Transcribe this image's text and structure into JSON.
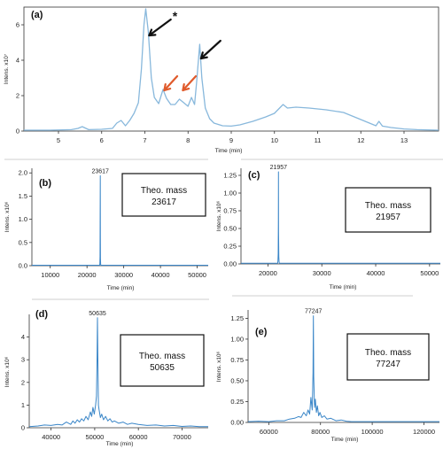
{
  "chart_data": [
    {
      "id": "a",
      "type": "line",
      "panel_label": "(a)",
      "title": "",
      "xlabel": "Time (min)",
      "ylabel": "Intens. x10⁷",
      "xlim": [
        4.2,
        13.8
      ],
      "ylim": [
        0,
        7.0
      ],
      "xticks": [
        5,
        6,
        7,
        8,
        9,
        10,
        11,
        12,
        13
      ],
      "yticks": [
        0,
        2,
        4,
        6
      ],
      "grid": false,
      "series": [
        {
          "color": "#88b8dc",
          "x": [
            4.2,
            4.8,
            5.3,
            5.45,
            5.55,
            5.7,
            6.0,
            6.25,
            6.35,
            6.45,
            6.55,
            6.65,
            6.75,
            6.85,
            6.92,
            6.98,
            7.02,
            7.08,
            7.15,
            7.22,
            7.32,
            7.42,
            7.5,
            7.6,
            7.7,
            7.8,
            7.9,
            8.0,
            8.08,
            8.15,
            8.2,
            8.27,
            8.32,
            8.4,
            8.5,
            8.6,
            8.8,
            9.0,
            9.2,
            9.5,
            9.8,
            10.0,
            10.2,
            10.3,
            10.5,
            10.8,
            11.2,
            11.6,
            11.9,
            12.2,
            12.35,
            12.42,
            12.5,
            12.7,
            13.0,
            13.3,
            13.8
          ],
          "y": [
            0.05,
            0.05,
            0.08,
            0.15,
            0.25,
            0.08,
            0.1,
            0.15,
            0.45,
            0.6,
            0.3,
            0.6,
            1.0,
            1.6,
            3.5,
            6.0,
            6.9,
            5.6,
            3.0,
            1.9,
            1.55,
            2.35,
            1.85,
            1.5,
            1.5,
            1.8,
            1.6,
            1.4,
            1.9,
            1.5,
            2.8,
            4.9,
            3.0,
            1.3,
            0.7,
            0.45,
            0.3,
            0.28,
            0.35,
            0.55,
            0.8,
            1.0,
            1.5,
            1.3,
            1.35,
            1.3,
            1.2,
            1.05,
            0.75,
            0.45,
            0.3,
            0.55,
            0.28,
            0.2,
            0.12,
            0.08,
            0.05
          ]
        }
      ],
      "annotations": [
        {
          "type": "arrow",
          "color": "#111111",
          "label": "*",
          "target": [
            7.1,
            5.4
          ],
          "from": [
            7.6,
            6.3
          ]
        },
        {
          "type": "arrow",
          "color": "#111111",
          "target": [
            8.3,
            4.1
          ],
          "from": [
            8.75,
            5.1
          ]
        },
        {
          "type": "arrow",
          "color": "#e05a2b",
          "target": [
            7.45,
            2.3
          ],
          "from": [
            7.75,
            3.1
          ]
        },
        {
          "type": "arrow",
          "color": "#e05a2b",
          "target": [
            7.88,
            2.3
          ],
          "from": [
            8.18,
            3.1
          ]
        }
      ]
    },
    {
      "id": "b",
      "type": "line",
      "panel_label": "(b)",
      "xlabel": "Time (min)",
      "ylabel": "Intens. x10⁶",
      "xlim": [
        5000,
        53000
      ],
      "ylim": [
        0,
        2.1
      ],
      "xticks": [
        10000,
        20000,
        30000,
        40000,
        50000
      ],
      "yticks": [
        0.0,
        0.5,
        1.0,
        1.5,
        2.0
      ],
      "ytick_labels": [
        "0.0",
        "0.5",
        "1.0",
        "1.5",
        "2.0"
      ],
      "peak_label": {
        "text": "23617",
        "x": 23617,
        "y": 1.94
      },
      "theo_mass": {
        "line1": "Theo. mass",
        "line2": "23617"
      },
      "series": [
        {
          "color": "#3a86c8",
          "x": [
            5000,
            23450,
            23500,
            23560,
            23600,
            23617,
            23640,
            23680,
            23720,
            23760,
            53000
          ],
          "y": [
            0.01,
            0.01,
            0.05,
            0.2,
            1.4,
            1.94,
            0.6,
            0.15,
            0.04,
            0.01,
            0.01
          ]
        }
      ]
    },
    {
      "id": "c",
      "type": "line",
      "panel_label": "(c)",
      "xlabel": "Time (min)",
      "ylabel": "Intens. x10⁶",
      "xlim": [
        15000,
        52000
      ],
      "ylim": [
        0,
        1.35
      ],
      "xticks": [
        20000,
        30000,
        40000,
        50000
      ],
      "yticks": [
        0.0,
        0.25,
        0.5,
        0.75,
        1.0,
        1.25
      ],
      "ytick_labels": [
        "0.00",
        "0.25",
        "0.50",
        "0.75",
        "1.00",
        "1.25"
      ],
      "peak_label": {
        "text": "21957",
        "x": 21957,
        "y": 1.3
      },
      "theo_mass": {
        "line1": "Theo. mass",
        "line2": "21957"
      },
      "series": [
        {
          "color": "#3a86c8",
          "x": [
            15000,
            21800,
            21850,
            21900,
            21940,
            21957,
            21980,
            22020,
            22070,
            22120,
            52000
          ],
          "y": [
            0.01,
            0.01,
            0.04,
            0.15,
            0.6,
            1.3,
            0.45,
            0.1,
            0.03,
            0.01,
            0.01
          ]
        }
      ]
    },
    {
      "id": "d",
      "type": "line",
      "panel_label": "(d)",
      "xlabel": "Time (min)",
      "ylabel": "Intens. x10⁶",
      "xlim": [
        35000,
        76000
      ],
      "ylim": [
        0,
        5.0
      ],
      "xticks": [
        40000,
        50000,
        60000,
        70000
      ],
      "yticks": [
        0,
        1,
        2,
        3,
        4
      ],
      "peak_label": {
        "text": "50635",
        "x": 50635,
        "y": 4.85
      },
      "theo_mass": {
        "line1": "Theo. mass",
        "line2": "50635"
      },
      "series": [
        {
          "color": "#3a86c8",
          "x": [
            35000,
            37000,
            38500,
            40000,
            41500,
            42500,
            43500,
            44500,
            45000,
            45500,
            46000,
            46500,
            47000,
            47500,
            48000,
            48500,
            49000,
            49300,
            49600,
            49900,
            50200,
            50400,
            50550,
            50635,
            50720,
            50850,
            51000,
            51300,
            51600,
            52000,
            52500,
            53000,
            53500,
            54000,
            54500,
            55500,
            56500,
            57500,
            58500,
            60000,
            62000,
            64000,
            66000,
            68000,
            70000,
            72000,
            74000,
            76000
          ],
          "y": [
            0.05,
            0.08,
            0.12,
            0.1,
            0.15,
            0.12,
            0.25,
            0.15,
            0.3,
            0.2,
            0.35,
            0.25,
            0.4,
            0.3,
            0.5,
            0.35,
            0.7,
            0.5,
            0.9,
            0.6,
            1.0,
            1.4,
            3.2,
            4.85,
            3.3,
            1.0,
            0.8,
            0.45,
            0.6,
            0.35,
            0.5,
            0.3,
            0.4,
            0.25,
            0.3,
            0.2,
            0.25,
            0.15,
            0.2,
            0.15,
            0.1,
            0.12,
            0.08,
            0.1,
            0.06,
            0.08,
            0.05,
            0.05
          ]
        }
      ]
    },
    {
      "id": "e",
      "type": "line",
      "panel_label": "(e)",
      "xlabel": "Time (min)",
      "ylabel": "Intens. x10⁶",
      "xlim": [
        52000,
        126000
      ],
      "ylim": [
        0,
        1.35
      ],
      "xticks": [
        60000,
        80000,
        100000,
        120000
      ],
      "yticks": [
        0.0,
        0.25,
        0.5,
        0.75,
        1.0,
        1.25
      ],
      "ytick_labels": [
        "0.00",
        "0.25",
        "0.50",
        "0.75",
        "1.00",
        "1.25"
      ],
      "peak_label": {
        "text": "77247",
        "x": 77247,
        "y": 1.28
      },
      "theo_mass": {
        "line1": "Theo. mass",
        "line2": "77247"
      },
      "series": [
        {
          "color": "#3a86c8",
          "x": [
            52000,
            56000,
            60000,
            63000,
            66000,
            68000,
            70000,
            71500,
            72500,
            73500,
            74500,
            75200,
            75800,
            76300,
            76800,
            77100,
            77247,
            77400,
            77700,
            78000,
            78400,
            78800,
            79300,
            79800,
            80500,
            81500,
            82500,
            84000,
            86000,
            88000,
            90000,
            92000,
            100000,
            110000,
            120000,
            126000
          ],
          "y": [
            0.01,
            0.015,
            0.01,
            0.02,
            0.02,
            0.04,
            0.05,
            0.07,
            0.06,
            0.12,
            0.08,
            0.15,
            0.1,
            0.3,
            0.15,
            0.6,
            1.28,
            0.55,
            0.18,
            0.28,
            0.12,
            0.2,
            0.08,
            0.12,
            0.06,
            0.08,
            0.04,
            0.05,
            0.02,
            0.03,
            0.015,
            0.01,
            0.01,
            0.01,
            0.01,
            0.01
          ]
        }
      ]
    }
  ]
}
